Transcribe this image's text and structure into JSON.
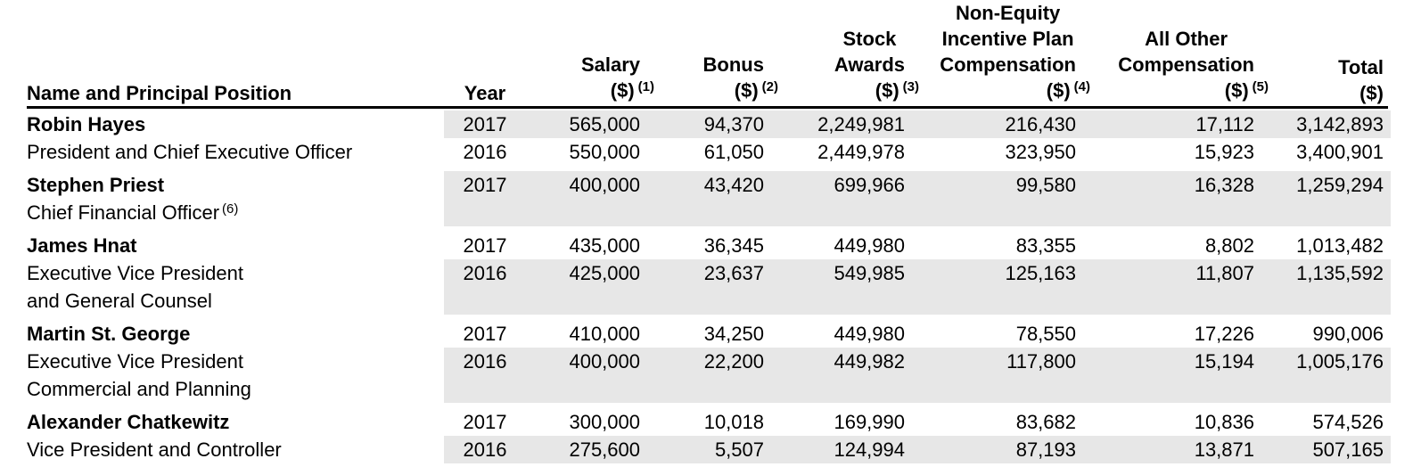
{
  "colors": {
    "row_shade": "#e7e7e7",
    "rule": "#000000",
    "text": "#000000"
  },
  "header": {
    "name": "Name and Principal Position",
    "year": "Year",
    "salary": {
      "words": [
        "Salary"
      ],
      "unit": "($)",
      "note": "(1)"
    },
    "bonus": {
      "words": [
        "Bonus"
      ],
      "unit": "($)",
      "note": "(2)"
    },
    "stock": {
      "words": [
        "Stock",
        "Awards"
      ],
      "unit": "($)",
      "note": "(3)"
    },
    "neip": {
      "words": [
        "Non-Equity",
        "Incentive Plan",
        "Compensation"
      ],
      "unit": "($)",
      "note": "(4)"
    },
    "other": {
      "words": [
        "All Other",
        "Compensation"
      ],
      "unit": "($)",
      "note": "(5)"
    },
    "total": {
      "words": [
        "Total"
      ],
      "unit": "($)",
      "note": ""
    }
  },
  "people": [
    {
      "name": "Robin Hayes",
      "titles": [
        "President and Chief Executive Officer"
      ],
      "title_note": "",
      "rows": [
        {
          "year": "2017",
          "salary": "565,000",
          "bonus": "94,370",
          "stock": "2,249,981",
          "neip": "216,430",
          "other": "17,112",
          "total": "3,142,893"
        },
        {
          "year": "2016",
          "salary": "550,000",
          "bonus": "61,050",
          "stock": "2,449,978",
          "neip": "323,950",
          "other": "15,923",
          "total": "3,400,901"
        }
      ]
    },
    {
      "name": "Stephen Priest",
      "titles": [
        "Chief Financial Officer"
      ],
      "title_note": "(6)",
      "rows": [
        {
          "year": "2017",
          "salary": "400,000",
          "bonus": "43,420",
          "stock": "699,966",
          "neip": "99,580",
          "other": "16,328",
          "total": "1,259,294"
        }
      ]
    },
    {
      "name": "James Hnat",
      "titles": [
        "Executive Vice President",
        "and General Counsel"
      ],
      "title_note": "",
      "rows": [
        {
          "year": "2017",
          "salary": "435,000",
          "bonus": "36,345",
          "stock": "449,980",
          "neip": "83,355",
          "other": "8,802",
          "total": "1,013,482"
        },
        {
          "year": "2016",
          "salary": "425,000",
          "bonus": "23,637",
          "stock": "549,985",
          "neip": "125,163",
          "other": "11,807",
          "total": "1,135,592"
        }
      ]
    },
    {
      "name": "Martin St. George",
      "titles": [
        "Executive Vice President",
        "Commercial and Planning"
      ],
      "title_note": "",
      "rows": [
        {
          "year": "2017",
          "salary": "410,000",
          "bonus": "34,250",
          "stock": "449,980",
          "neip": "78,550",
          "other": "17,226",
          "total": "990,006"
        },
        {
          "year": "2016",
          "salary": "400,000",
          "bonus": "22,200",
          "stock": "449,982",
          "neip": "117,800",
          "other": "15,194",
          "total": "1,005,176"
        }
      ]
    },
    {
      "name": "Alexander Chatkewitz",
      "titles": [
        "Vice President and Controller"
      ],
      "title_note": "",
      "rows": [
        {
          "year": "2017",
          "salary": "300,000",
          "bonus": "10,018",
          "stock": "169,990",
          "neip": "83,682",
          "other": "10,836",
          "total": "574,526"
        },
        {
          "year": "2016",
          "salary": "275,600",
          "bonus": "5,507",
          "stock": "124,994",
          "neip": "87,193",
          "other": "13,871",
          "total": "507,165"
        }
      ]
    }
  ]
}
